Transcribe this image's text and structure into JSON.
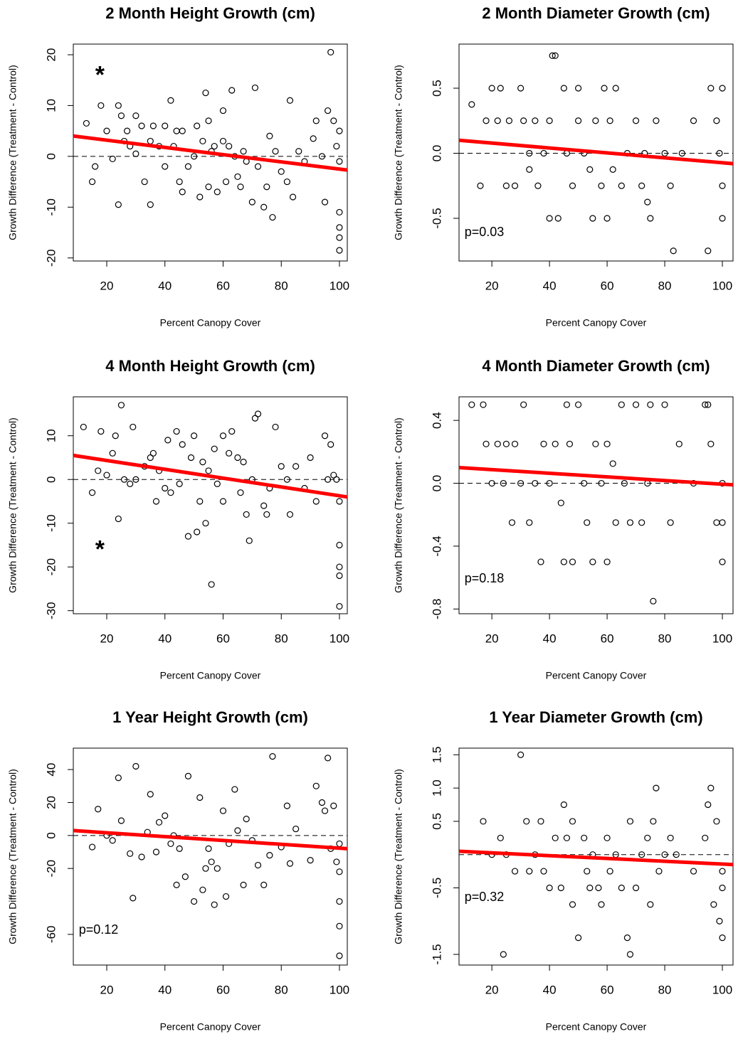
{
  "chart_data": [
    {
      "type": "scatter",
      "title": "2 Month Height Growth (cm)",
      "x_label": "Percent Canopy Cover",
      "y_label": "Growth Difference (Treatment - Control)",
      "xlim": [
        8.5,
        102.7
      ],
      "xticks": [
        20,
        40,
        60,
        80,
        100
      ],
      "ylim": [
        -20.6,
        22.1
      ],
      "yticks": [
        -20,
        -10,
        0,
        10,
        20
      ],
      "reference_y": 0,
      "color": "#000000",
      "trend": {
        "x": [
          8.5,
          102.7
        ],
        "y": [
          4,
          -2.7
        ],
        "color": "#ff0000"
      },
      "annotation": "*",
      "x": [
        13,
        18,
        15,
        16,
        20,
        22,
        24,
        24,
        25,
        26,
        27,
        28,
        30,
        30,
        32,
        33,
        35,
        35,
        36,
        38,
        40,
        40,
        42,
        43,
        44,
        45,
        46,
        46,
        48,
        50,
        51,
        52,
        53,
        54,
        55,
        55,
        56,
        57,
        58,
        60,
        60,
        61,
        62,
        63,
        64,
        65,
        66,
        67,
        68,
        70,
        71,
        72,
        74,
        75,
        76,
        77,
        78,
        80,
        82,
        83,
        84,
        86,
        88,
        91,
        92,
        94,
        95,
        96,
        97,
        98,
        99,
        100,
        100,
        100,
        100,
        100,
        100
      ],
      "values": [
        6.5,
        10,
        -5,
        -2,
        5,
        -0.5,
        10,
        -9.5,
        8,
        3,
        5,
        2,
        8,
        0.5,
        6,
        -5,
        -9.5,
        3,
        6,
        2,
        6,
        -2,
        11,
        2,
        5,
        -5,
        5,
        -7,
        -2,
        0,
        6,
        -8,
        3,
        12.5,
        -6,
        7,
        1,
        2,
        -7,
        9,
        3,
        -5,
        2,
        13,
        0,
        -4,
        -6,
        1,
        -1,
        -9,
        13.5,
        -2,
        -10,
        -6,
        4,
        -12,
        1,
        -3,
        -5,
        11,
        -8,
        1,
        -1,
        3.5,
        7,
        0,
        -9,
        9,
        20.5,
        7,
        2,
        -1,
        -11,
        -14,
        -16,
        -18.5,
        5
      ]
    },
    {
      "type": "scatter",
      "title": "2 Month Diameter Growth (cm)",
      "x_label": "Percent Canopy Cover",
      "y_label": "Growth Difference (Treatment - Control)",
      "xlim": [
        8.6,
        103.7
      ],
      "xticks": [
        20,
        40,
        60,
        80,
        100
      ],
      "ylim": [
        -0.828,
        0.839
      ],
      "yticks": [
        -0.5,
        {
          "value": 0,
          "label": "0.0"
        },
        0.5
      ],
      "reference_y": 0,
      "color": "#000000",
      "trend": {
        "x": [
          8.6,
          103.7
        ],
        "y": [
          0.1,
          -0.08
        ],
        "color": "#ff0000"
      },
      "annotation": "p=0.03",
      "x": [
        13,
        16,
        18,
        20,
        22,
        23,
        25,
        26,
        28,
        30,
        31,
        33,
        33,
        35,
        36,
        38,
        40,
        40,
        41,
        42,
        43,
        45,
        46,
        48,
        50,
        50,
        52,
        54,
        55,
        56,
        58,
        59,
        60,
        61,
        62,
        63,
        65,
        67,
        70,
        72,
        73,
        74,
        75,
        77,
        80,
        82,
        83,
        86,
        90,
        95,
        96,
        98,
        99,
        100,
        100,
        100
      ],
      "values": [
        0.375,
        -0.25,
        0.25,
        0.5,
        0.25,
        0.5,
        -0.25,
        0.25,
        -0.25,
        0.5,
        0.25,
        -0.125,
        0,
        0.25,
        -0.25,
        0,
        -0.5,
        0.25,
        0.75,
        0.75,
        -0.5,
        0.5,
        0,
        -0.25,
        0.5,
        0.25,
        0,
        -0.125,
        -0.5,
        0.25,
        -0.25,
        0.5,
        -0.5,
        0.25,
        -0.125,
        0.5,
        -0.25,
        0,
        0.25,
        -0.25,
        0,
        -0.375,
        -0.5,
        0.25,
        0,
        -0.25,
        -0.75,
        0,
        0.25,
        -0.75,
        0.5,
        0.25,
        0,
        0.5,
        -0.5,
        -0.25
      ]
    },
    {
      "type": "scatter",
      "title": "4 Month Height Growth (cm)",
      "x_label": "Percent Canopy Cover",
      "y_label": "Growth Difference (Treatment - Control)",
      "xlim": [
        8.5,
        102.7
      ],
      "xticks": [
        20,
        40,
        60,
        80,
        100
      ],
      "ylim": [
        -30.7,
        18.9
      ],
      "yticks": [
        -30,
        -20,
        -10,
        0,
        10
      ],
      "reference_y": 0,
      "color": "#000000",
      "trend": {
        "x": [
          8.5,
          102.7
        ],
        "y": [
          5.5,
          -4
        ],
        "color": "#ff0000"
      },
      "annotation": "*",
      "x": [
        12,
        15,
        17,
        18,
        20,
        22,
        23,
        24,
        25,
        26,
        28,
        29,
        30,
        33,
        35,
        36,
        37,
        38,
        40,
        41,
        42,
        44,
        45,
        46,
        48,
        49,
        50,
        51,
        52,
        53,
        54,
        55,
        56,
        57,
        58,
        60,
        60,
        62,
        63,
        65,
        66,
        67,
        68,
        69,
        70,
        71,
        72,
        74,
        75,
        76,
        78,
        80,
        82,
        83,
        85,
        88,
        90,
        92,
        95,
        96,
        97,
        98,
        99,
        100,
        100,
        100,
        100,
        100
      ],
      "values": [
        12,
        -3,
        2,
        11,
        1,
        6,
        10,
        -9,
        17,
        0,
        -1,
        12,
        0,
        3,
        5,
        6,
        -5,
        2,
        -2,
        9,
        -3,
        11,
        -1,
        8,
        -13,
        5,
        10,
        -12,
        -5,
        4,
        -10,
        2,
        -24,
        7,
        -1,
        10,
        -5,
        6,
        11,
        5,
        -3,
        4,
        -8,
        -14,
        0,
        14,
        15,
        -6,
        -8,
        -2,
        12,
        3,
        0,
        -8,
        3,
        -2,
        5,
        -5,
        10,
        0,
        8,
        1,
        0,
        -15,
        -20,
        -22,
        -29,
        -5
      ]
    },
    {
      "type": "scatter",
      "title": "4 Month Diameter Growth (cm)",
      "x_label": "Percent Canopy Cover",
      "y_label": "Growth Difference (Treatment - Control)",
      "xlim": [
        8.6,
        103.7
      ],
      "xticks": [
        20,
        40,
        60,
        80,
        100
      ],
      "ylim": [
        -0.83,
        0.55
      ],
      "yticks": [
        -0.8,
        -0.4,
        {
          "value": 0,
          "label": "0.0"
        },
        0.4
      ],
      "reference_y": 0,
      "color": "#000000",
      "trend": {
        "x": [
          8.6,
          103.7
        ],
        "y": [
          0.1,
          -0.01
        ],
        "color": "#ff0000"
      },
      "annotation": "p=0.18",
      "x": [
        13,
        17,
        18,
        20,
        22,
        24,
        25,
        27,
        28,
        30,
        31,
        33,
        35,
        37,
        38,
        40,
        42,
        44,
        45,
        46,
        47,
        48,
        50,
        52,
        53,
        55,
        56,
        58,
        60,
        60,
        62,
        63,
        65,
        66,
        68,
        70,
        72,
        74,
        75,
        76,
        80,
        82,
        85,
        90,
        94,
        95,
        96,
        98,
        100,
        100,
        100
      ],
      "values": [
        0.5,
        0.5,
        0.25,
        0,
        0.25,
        0,
        0.25,
        -0.25,
        0.25,
        0,
        0.5,
        -0.25,
        0,
        -0.5,
        0.25,
        0,
        0.25,
        -0.125,
        -0.5,
        0.5,
        0.25,
        -0.5,
        0.5,
        0,
        -0.25,
        -0.5,
        0.25,
        0,
        -0.5,
        0.25,
        0.125,
        -0.25,
        0.5,
        0,
        -0.25,
        0.5,
        -0.25,
        0,
        0.5,
        -0.75,
        0.5,
        -0.25,
        0.25,
        0,
        0.5,
        0.5,
        0.25,
        -0.25,
        0,
        -0.5,
        -0.25
      ]
    },
    {
      "type": "scatter",
      "title": "1 Year Height Growth (cm)",
      "x_label": "Percent Canopy Cover",
      "y_label": "Growth Difference (Treatment - Control)",
      "xlim": [
        8.5,
        102.7
      ],
      "xticks": [
        20,
        40,
        60,
        80,
        100
      ],
      "ylim": [
        -78.6,
        53
      ],
      "yticks": [
        -60,
        -20,
        0,
        20,
        40
      ],
      "reference_y": 0,
      "color": "#000000",
      "trend": {
        "x": [
          8.5,
          102.7
        ],
        "y": [
          3,
          -8
        ],
        "color": "#ff0000"
      },
      "annotation": "p=0.12",
      "x": [
        15,
        17,
        20,
        22,
        24,
        25,
        28,
        29,
        30,
        32,
        34,
        35,
        37,
        38,
        40,
        42,
        43,
        44,
        45,
        47,
        48,
        50,
        52,
        53,
        54,
        55,
        56,
        57,
        58,
        60,
        61,
        62,
        64,
        65,
        67,
        68,
        70,
        72,
        74,
        76,
        77,
        80,
        82,
        83,
        85,
        90,
        92,
        94,
        95,
        96,
        97,
        98,
        99,
        100,
        100,
        100,
        100,
        100
      ],
      "values": [
        -7,
        16,
        0,
        -3,
        35,
        9,
        -11,
        -38,
        42,
        -13,
        2,
        25,
        -10,
        8,
        12,
        -5,
        0,
        -30,
        -8,
        -25,
        36,
        -40,
        23,
        -33,
        -20,
        -8,
        -16,
        -42,
        -20,
        15,
        -37,
        -5,
        28,
        3,
        -30,
        10,
        -3,
        -18,
        -30,
        -12,
        48,
        -7,
        18,
        -17,
        4,
        -15,
        30,
        20,
        15,
        47,
        -8,
        18,
        -16,
        -40,
        -22,
        -55,
        -73,
        -5
      ]
    },
    {
      "type": "scatter",
      "title": "1 Year Diameter Growth (cm)",
      "x_label": "Percent Canopy Cover",
      "y_label": "Growth Difference (Treatment - Control)",
      "xlim": [
        8.6,
        103.7
      ],
      "xticks": [
        20,
        40,
        60,
        80,
        100
      ],
      "ylim": [
        -1.66,
        1.6
      ],
      "yticks": [
        -1.5,
        -0.5,
        0.5,
        {
          "value": 1,
          "label": "1.0"
        },
        1.5
      ],
      "reference_y": 0,
      "color": "#000000",
      "trend": {
        "x": [
          8.6,
          103.7
        ],
        "y": [
          0.05,
          -0.15
        ],
        "color": "#ff0000"
      },
      "annotation": "p=0.32",
      "x": [
        17,
        20,
        23,
        24,
        25,
        28,
        30,
        32,
        33,
        35,
        37,
        38,
        40,
        42,
        44,
        45,
        46,
        48,
        48,
        50,
        52,
        53,
        54,
        55,
        57,
        58,
        60,
        61,
        63,
        65,
        67,
        68,
        68,
        70,
        72,
        74,
        75,
        76,
        77,
        78,
        80,
        82,
        84,
        90,
        94,
        95,
        96,
        97,
        98,
        99,
        100,
        100,
        100
      ],
      "values": [
        0.5,
        0,
        0.25,
        -1.5,
        0,
        -0.25,
        1.5,
        0.5,
        -0.25,
        0,
        0.5,
        -0.25,
        -0.5,
        0.25,
        -0.5,
        0.75,
        0.25,
        -0.75,
        0.5,
        -1.25,
        0.25,
        -0.25,
        -0.5,
        0,
        -0.5,
        -0.75,
        0.25,
        -0.25,
        0,
        -0.5,
        -1.25,
        -1.5,
        0.5,
        -0.5,
        0,
        0.25,
        -0.75,
        0.5,
        1,
        -0.25,
        0,
        0.25,
        0,
        -0.25,
        0.25,
        0.75,
        1,
        -0.75,
        0.5,
        -1,
        -1.25,
        -0.5,
        -0.25
      ]
    }
  ]
}
